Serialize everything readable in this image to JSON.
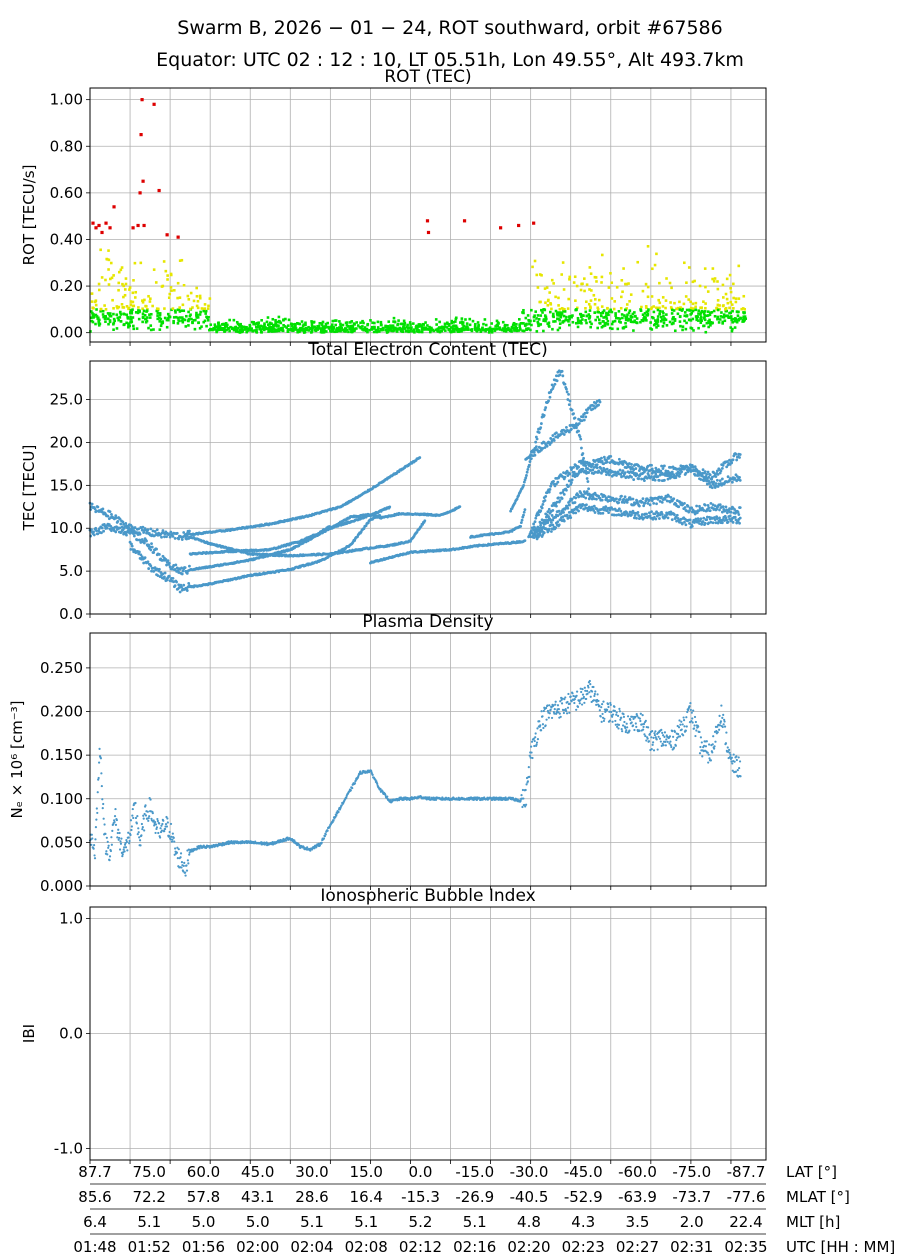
{
  "figure": {
    "title_line1": "Swarm B,  2026 − 01 − 24,  ROT southward,  orbit #67586",
    "title_line2": "Equator:  UTC 02 : 12 : 10,  LT 05.51h,  Lon 49.55°,  Alt 493.7km"
  },
  "colors": {
    "rot_low": "#00e000",
    "rot_mid": "#e6e600",
    "rot_high": "#dd0000",
    "series": "#4a98c9",
    "grid": "#b0b0b0"
  },
  "chart_data": [
    {
      "type": "scatter",
      "title": "ROT (TEC)",
      "ylabel": "ROT [TECU/s]",
      "ylim": [
        -0.04,
        1.05
      ],
      "yticks": [
        0.0,
        0.2,
        0.4,
        0.6,
        0.8,
        1.0
      ],
      "ytick_labels": [
        "0.00",
        "0.20",
        "0.40",
        "0.60",
        "0.80",
        "1.00"
      ],
      "grid": true,
      "color_bins": [
        {
          "max": 0.1,
          "color": "rot_low"
        },
        {
          "max": 0.4,
          "color": "rot_mid"
        },
        {
          "max": 1.0,
          "color": "rot_high"
        }
      ],
      "high_points": [
        [
          0.3,
          0.47
        ],
        [
          0.6,
          0.45
        ],
        [
          0.9,
          0.46
        ],
        [
          1.2,
          0.43
        ],
        [
          1.6,
          0.47
        ],
        [
          2.0,
          0.45
        ],
        [
          2.4,
          0.54
        ],
        [
          4.3,
          0.45
        ],
        [
          4.8,
          0.46
        ],
        [
          5.0,
          0.6
        ],
        [
          5.1,
          0.85
        ],
        [
          5.2,
          1.0
        ],
        [
          5.3,
          0.65
        ],
        [
          5.4,
          0.46
        ],
        [
          6.4,
          0.98
        ],
        [
          6.9,
          0.61
        ],
        [
          7.7,
          0.42
        ],
        [
          8.8,
          0.41
        ],
        [
          33.7,
          0.48
        ],
        [
          33.8,
          0.43
        ],
        [
          37.4,
          0.48
        ],
        [
          41.0,
          0.45
        ],
        [
          42.8,
          0.46
        ],
        [
          44.3,
          0.47
        ]
      ]
    },
    {
      "type": "scatter",
      "title": "Total Electron Content (TEC)",
      "ylabel": "TEC [TECU]",
      "ylim": [
        0,
        29.5
      ],
      "yticks": [
        0,
        5,
        10,
        15,
        20,
        25
      ],
      "ytick_labels": [
        "0.0",
        "5.0",
        "10.0",
        "15.0",
        "20.0",
        "25.0"
      ],
      "grid": true,
      "series": [
        {
          "x": [
            0,
            2,
            4,
            6,
            8,
            10,
            12,
            16,
            20,
            24,
            28,
            30,
            32,
            33.5
          ],
          "y": [
            12.5,
            11.5,
            10,
            9.5,
            9.2,
            9,
            8.2,
            7,
            6.8,
            7,
            7.7,
            8,
            8.5,
            11
          ]
        },
        {
          "x": [
            0,
            2,
            4,
            6,
            7.5,
            9,
            12,
            16,
            20,
            24,
            28,
            30
          ],
          "y": [
            9.5,
            10.2,
            9.5,
            8,
            6,
            5,
            5.5,
            6.3,
            7.5,
            10,
            11.5,
            12.5
          ]
        },
        {
          "x": [
            4,
            6,
            8,
            9,
            12,
            16,
            20,
            23,
            26,
            28,
            29
          ],
          "y": [
            8,
            5.5,
            4,
            3,
            3.5,
            4.5,
            5.2,
            6.2,
            8,
            11,
            11.5
          ]
        },
        {
          "x": [
            10,
            14,
            18,
            21,
            23,
            24
          ],
          "y": [
            7,
            7.3,
            7.5,
            8.5,
            9.5,
            10.3
          ]
        },
        {
          "x": [
            9.5,
            14,
            18,
            22,
            25,
            27,
            30,
            33
          ],
          "y": [
            9.2,
            9.8,
            10.5,
            11.5,
            12.5,
            13.8,
            16,
            18.3
          ]
        },
        {
          "x": [
            24,
            26,
            28,
            29,
            31,
            33.5,
            35,
            37
          ],
          "y": [
            10,
            11.3,
            11.6,
            11.2,
            11.7,
            11.6,
            11.5,
            12.5
          ]
        },
        {
          "x": [
            28,
            32,
            36,
            39,
            42,
            43.5
          ],
          "y": [
            6,
            7.2,
            7.5,
            8,
            8.3,
            8.5
          ]
        },
        {
          "x": [
            38,
            40,
            42,
            43,
            43.5
          ],
          "y": [
            9,
            9.3,
            9.6,
            10.3,
            12.5
          ]
        },
        {
          "x": [
            42,
            43.3,
            44,
            46,
            47,
            49,
            50
          ],
          "y": [
            12,
            15,
            18,
            26,
            28.5,
            20,
            13
          ]
        },
        {
          "x": [
            43.5,
            45,
            47,
            49,
            50,
            51
          ],
          "y": [
            18,
            19.5,
            21,
            22.5,
            24,
            24.7
          ]
        },
        {
          "x": [
            43.8,
            46,
            49,
            52,
            55,
            58,
            60,
            62,
            65
          ],
          "y": [
            9,
            15,
            17.5,
            18,
            17,
            16.8,
            17,
            16,
            18.8
          ]
        },
        {
          "x": [
            44,
            46,
            49,
            52,
            55,
            58,
            60,
            62,
            65
          ],
          "y": [
            9,
            12,
            17,
            16.5,
            16,
            16,
            17,
            15,
            16
          ]
        },
        {
          "x": [
            44.2,
            46,
            49,
            52,
            55,
            58,
            60,
            62,
            65
          ],
          "y": [
            9,
            11,
            14,
            13.5,
            13,
            13.5,
            12,
            12.5,
            12
          ]
        },
        {
          "x": [
            44.5,
            46,
            49,
            52,
            55,
            58,
            60,
            62,
            65
          ],
          "y": [
            9,
            10,
            12.5,
            12,
            11.5,
            11.5,
            10.5,
            11,
            11
          ]
        }
      ]
    },
    {
      "type": "scatter",
      "title": "Plasma Density",
      "ylabel": "Nₑ × 10⁶ [cm⁻³]",
      "ylim": [
        0,
        0.29
      ],
      "yticks": [
        0,
        0.05,
        0.1,
        0.15,
        0.2,
        0.25
      ],
      "ytick_labels": [
        "0.000",
        "0.050",
        "0.100",
        "0.150",
        "0.200",
        "0.250"
      ],
      "grid": true,
      "series": [
        {
          "x": [
            0,
            0.5,
            1,
            1.5,
            2,
            2.5,
            3,
            3.5,
            4,
            4.5,
            5,
            5.5,
            6,
            6.5,
            7,
            7.5,
            8,
            8.5,
            9,
            9.5,
            10,
            11,
            12,
            14,
            16,
            18,
            20,
            21,
            22,
            23,
            24,
            25,
            26,
            27,
            28,
            29,
            30,
            31,
            32,
            33,
            34,
            35,
            36,
            37,
            38,
            39,
            40,
            41,
            42,
            43,
            43.5,
            44,
            45,
            46,
            47,
            48,
            49,
            50,
            51,
            52,
            53,
            54,
            55,
            56,
            57,
            58,
            59,
            60,
            61,
            62,
            63,
            64,
            65
          ],
          "y": [
            0.06,
            0.04,
            0.16,
            0.05,
            0.04,
            0.08,
            0.05,
            0.04,
            0.06,
            0.09,
            0.05,
            0.08,
            0.09,
            0.07,
            0.06,
            0.07,
            0.065,
            0.04,
            0.03,
            0.02,
            0.04,
            0.045,
            0.045,
            0.05,
            0.05,
            0.048,
            0.055,
            0.045,
            0.042,
            0.048,
            0.07,
            0.09,
            0.11,
            0.13,
            0.132,
            0.11,
            0.097,
            0.1,
            0.1,
            0.102,
            0.1,
            0.1,
            0.1,
            0.1,
            0.1,
            0.1,
            0.1,
            0.1,
            0.1,
            0.098,
            0.1,
            0.15,
            0.19,
            0.2,
            0.205,
            0.21,
            0.215,
            0.225,
            0.2,
            0.2,
            0.19,
            0.185,
            0.19,
            0.165,
            0.17,
            0.165,
            0.18,
            0.2,
            0.16,
            0.15,
            0.2,
            0.14,
            0.135
          ]
        }
      ]
    },
    {
      "type": "line",
      "title": "Ionospheric Bubble Index",
      "ylabel": "IBI",
      "ylim": [
        -1.1,
        1.1
      ],
      "yticks": [
        -1,
        0,
        1
      ],
      "ytick_labels": [
        "-1.0",
        "0.0",
        "1.0"
      ],
      "grid": true,
      "series": []
    }
  ],
  "x_axis": {
    "range_min": [
      0,
      67.5
    ],
    "tick_positions_min": [
      0,
      4,
      8,
      12,
      16,
      20,
      24,
      28,
      32,
      36,
      40,
      44,
      48,
      52,
      56,
      60,
      64
    ],
    "rows": [
      {
        "label": "LAT [°]",
        "values": [
          "87.7",
          "75.0",
          "60.0",
          "45.0",
          "30.0",
          "15.0",
          "0.0",
          "-15.0",
          "-30.0",
          "-45.0",
          "-60.0",
          "-75.0",
          "-87.7"
        ]
      },
      {
        "label": "MLAT [°]",
        "values": [
          "85.6",
          "72.2",
          "57.8",
          "43.1",
          "28.6",
          "16.4",
          "-15.3",
          "-26.9",
          "-40.5",
          "-52.9",
          "-63.9",
          "-73.7",
          "-77.6"
        ]
      },
      {
        "label": "MLT [h]",
        "values": [
          "6.4",
          "5.1",
          "5.0",
          "5.0",
          "5.1",
          "5.1",
          "5.2",
          "5.1",
          "4.8",
          "4.3",
          "3.5",
          "2.0",
          "22.4"
        ]
      },
      {
        "label": "UTC [HH : MM]",
        "values": [
          "01:48",
          "01:52",
          "01:56",
          "02:00",
          "02:04",
          "02:08",
          "02:12",
          "02:16",
          "02:20",
          "02:23",
          "02:27",
          "02:31",
          "02:35"
        ]
      }
    ]
  }
}
